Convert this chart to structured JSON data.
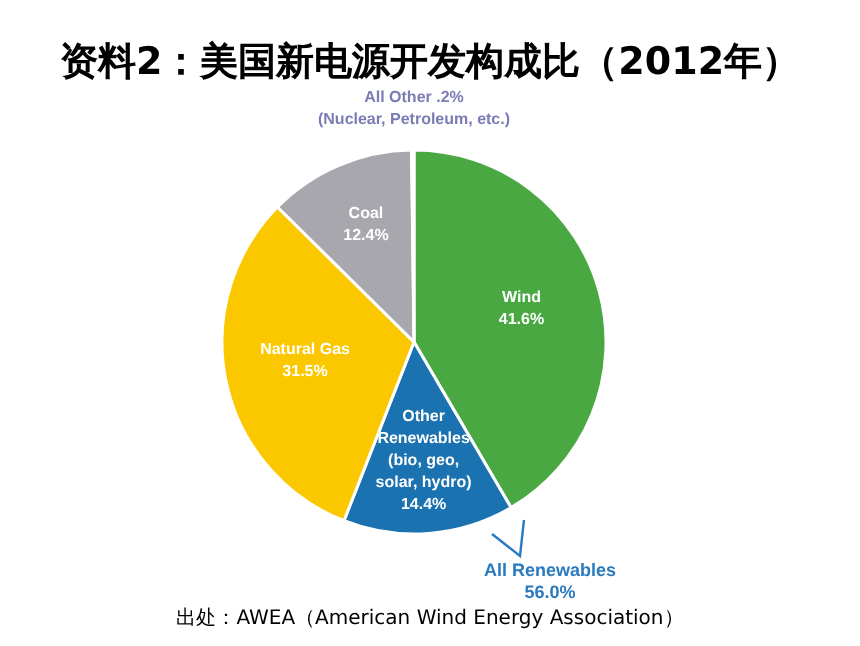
{
  "chart_data": {
    "type": "pie",
    "title": "资料2：美国新电源开发构成比（2012年）",
    "categories": [
      "Wind",
      "Other Renewables (bio, geo, solar, hydro)",
      "Natural Gas",
      "Coal",
      "All Other"
    ],
    "values": [
      41.6,
      14.4,
      31.5,
      12.4,
      0.2
    ],
    "value_labels": [
      "41.6%",
      "14.4%",
      "31.5%",
      "12.4%",
      ".2%"
    ],
    "colors": [
      "#4aa843",
      "#1a72b0",
      "#fbc800",
      "#a7a7ad",
      "#7b7bb5"
    ],
    "annotations": [
      "All Renewables 56.0%",
      "(Nuclear, Petroleum, etc.)",
      "出处：AWEA（American Wind Energy Association）"
    ],
    "legend": false
  }
}
